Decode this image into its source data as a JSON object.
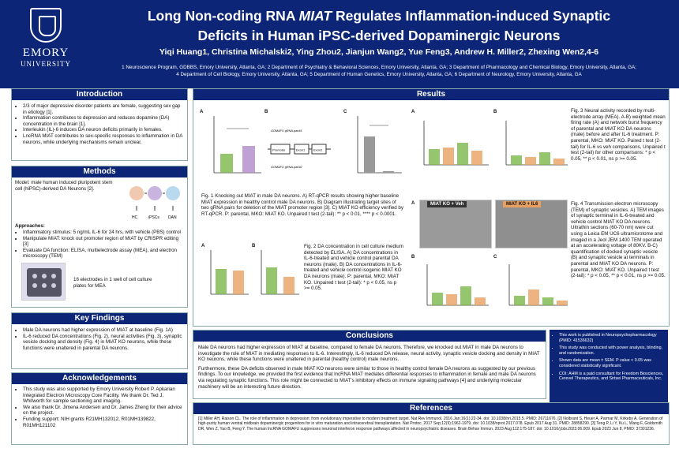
{
  "header": {
    "logo_name": "EMORY",
    "logo_sub": "UNIVERSITY",
    "title_line1_a": "Long Non-coding RNA ",
    "title_line1_gene": "MIAT",
    "title_line1_b": " Regulates Inflammation-induced Synaptic",
    "title_line2": "Deficits in Human iPSC-derived Dopaminergic Neurons",
    "authors": "Yiqi Huang1, Christina Michalski2, Ying Zhou2, Jianjun Wang2, Yue Feng3, Andrew H. Miller2, Zhexing Wen2,4-6",
    "affiliations_1": "1 Neuroscience Program, GDBBS, Emory University, Atlanta, GA; 2 Department of Psychiatry & Behavioral Sciences, Emory University, Atlanta, GA; 3 Department of Pharmacology and Chemical Biology, Emory University, Atlanta, GA;",
    "affiliations_2": "4 Department of Cell Biology, Emory University, Atlanta, GA; 5 Department of Human Genetics, Emory University, Atlanta, GA; 6 Department of Neurology, Emory University, Atlanta, GA"
  },
  "intro": {
    "heading": "Introduction",
    "bullets": [
      "2/3 of major depressive disorder patients are female, suggesting sex gap in etiology [1].",
      "Inflammation contributes to depression and reduces dopamine (DA) concentration in the brain [1].",
      "Interleukin (IL)-6 induces DA neuron deficits primarily in females.",
      "LncRNA MIAT contributes to sex-specific responses to inflammation in DA neurons, while underlying mechanisms remain unclear."
    ]
  },
  "methods": {
    "heading": "Methods",
    "model": "Model: male human induced pluripotent stem cell (hiPSC)-derived DA Neurons [2].",
    "flow": [
      "HC",
      "iPSCs",
      "DAN"
    ],
    "approaches_label": "Approaches:",
    "bullets": [
      "Inflammatory stimulus: 5 ng/mL IL-6 for 24 hrs, with vehicle (PBS) control",
      "Manipulate MIAT: knock out promoter region of MIAT by CRISPR editing [3]",
      "Evaluate DA function: ELISA, multielectrode assay (MEA), and electron microscopy (TEM)"
    ],
    "mea_caption": "16 electrodes in 1 well of cell culture plates for MEA"
  },
  "findings": {
    "heading": "Key Findings",
    "bullets": [
      "Male DA neurons had higher expression of MIAT at baseline (Fig. 1A)",
      "IL-6 reduced DA concentrations (Fig. 2), neural activities (Fig. 3), synaptic vesicle docking and density (Fig. 4) in MIAT KO neurons, while these functions were unaltered in parental DA neurons."
    ]
  },
  "ack": {
    "heading": "Acknowledgements",
    "bullets": [
      "This study was also supported by Emory University Robert P. Apkarian Integrated Electron Microscopy Core Facility. We thank Dr. Ted J. Whitworth for sample sectioning and imaging.",
      "We also thank Dr. Jimena Andersen and Dr. James Zheng for their advice on the project.",
      "Funding support: NIH grants R21MH132012, R01MH139822, R01MH121102"
    ]
  },
  "results": {
    "heading": "Results",
    "fig1_caption": "Fig. 1 Knocking out MIAT in male DA neurons. A) RT-qPCR results showing higher baseline MIAT expression in healthy control male DA neurons. B) Diagram illustrating target sites of two gRNA pairs for deletion of the MIAT promoter region [3]. C) MIAT KO efficiency verified by RT-qPCR. P: parental, MKO: MIAT KO. Unpaired t test (2-tail): ** p < 0.01, **** p < 0.0001.",
    "fig2_caption": "Fig. 2 DA concentration in cell culture medium detected by ELISA. A) DA concentrations in IL-6-treated and vehicle control parental DA neurons (male). B) DA concentrations in IL-6-treated and vehicle control isogenic MIAT KO DA neurons (male). P: parental, MKO: MIAT KO. Unpaired t test (2-tail): * p < 0.05, ns p >= 0.05.",
    "fig3_caption": "Fig. 3 Neural activity recorded by multi-electrode array (MEA). A-B) weighted mean firing rate (A) and network burst frequency of parental and MIAT KO DA neurons (male) before and after IL-6 treatment. P: parental, MKO: MIAT KO. Paired t test (2-tail) for IL-6 vs veh comparisons, Unpaired t test (2-tail) for other comparisons: * p < 0.05, ** p < 0.01, ns p >= 0.05.",
    "fig4_caption": "Fig. 4 Transmission electron microscopy (TEM) of synaptic vesicles. A) TEM images of synaptic terminal in IL-6-treated and vehicle control MIAT KO DA neurons. Ultrathin sections (60-70 nm) were cut using a Leica EM UC6 ultramicrotome and imaged in a Jeol JEM 1400 TEM operated at an accelerating voltage of 80KV. B-C) quantification of docked synaptic vesicle (B) and synaptic vesicle at terminals in parental and MIAT KO DA neurons. P: parental, MKO: MIAT KO. Unpaired t test (2-tail): * p < 0.05, ** p < 0.01, ns p >= 0.05.",
    "fig1b_labels": [
      "GOMAFU gRNA-pair#1",
      "Promoter",
      "Exon1",
      "Exon2",
      "GOMAFU gRNA-pair#2"
    ],
    "tem_labels": [
      "MIAT KO + Veh",
      "MIAT KO + IL6"
    ],
    "panel_letters": [
      "A",
      "B",
      "C"
    ]
  },
  "conclusions": {
    "heading": "Conclusions",
    "p1": "Male DA neurons had higher expression of MIAT at baseline, compared to female DA neurons. Therefore, we knocked out MIAT in male DA neurons to investigate the role of MIAT in mediating responses to IL-6. Interestingly, IL-6 reduced DA release, neural activity, synaptic vesicle docking and density in MIAT KO neurons, while these functions were unaltered in parental (healthy control) male neurons.",
    "p2": "Furthermore, these DA deficits observed in male MIAT KO neurons were similar to those in healthy control female DA neurons as suggested by our previous findings. To our knowledge, we provided the first evidence that lncRNA MIAT mediates differential responses to inflammation in female and male DA neurons via regulating synaptic functions. This role might be connected to MIAT's inhibitory effects on immune signaling pathways [4] and underlying molecular machinery will be an interesting future direction."
  },
  "sidebox": {
    "bullets": [
      "This work is published in Neuropsychopharmacology (PMID: 41536632)",
      "This study was conducted with power analysis, blinding, and randomization.",
      "Shown data are mean ± SEM. P value < 0.05 was considered statistically significant.",
      "COI: AHM is a paid consultant for Freedom Biosciences, Cerevel Therapeutics, and Sirtsei Pharmaceuticals, Inc."
    ]
  },
  "references": {
    "heading": "References",
    "text": "[1] Miller AH, Raison CL. The role of inflammation in depression: from evolutionary imperative to modern treatment target. Nat Rev Immunol. 2016 Jan;16(1):22-34. doi: 10.1038/nri.2015.5. PMID: 26711676. [2] Nolbrant S, Heuer A, Parmar M, Kirkeby A. Generation of high-purity human ventral midbrain dopaminergic progenitors for in vitro maturation and intracerebral transplantation. Nat Protoc. 2017 Sep;12(9):1962-1979. doi: 10.1038/nprot.2017.078. Epub 2017 Aug 31. PMID: 28858290. [3] Teng P, Li Y, Ku L, Wang F, Goldsmith DR, Wen Z, Yao B, Feng Y. The human lncRNA GOMAFU suppresses neuronal interferon response pathways affected in neuropsychiatric diseases. Brain Behav Immun. 2023 Aug;112:175-187. doi: 10.1016/j.bbi.2023.06.009. Epub 2023 Jun 8. PMID: 37301236."
  },
  "colors": {
    "navy": "#0c2577",
    "veh": "#7ab648",
    "il6": "#e8a060"
  }
}
